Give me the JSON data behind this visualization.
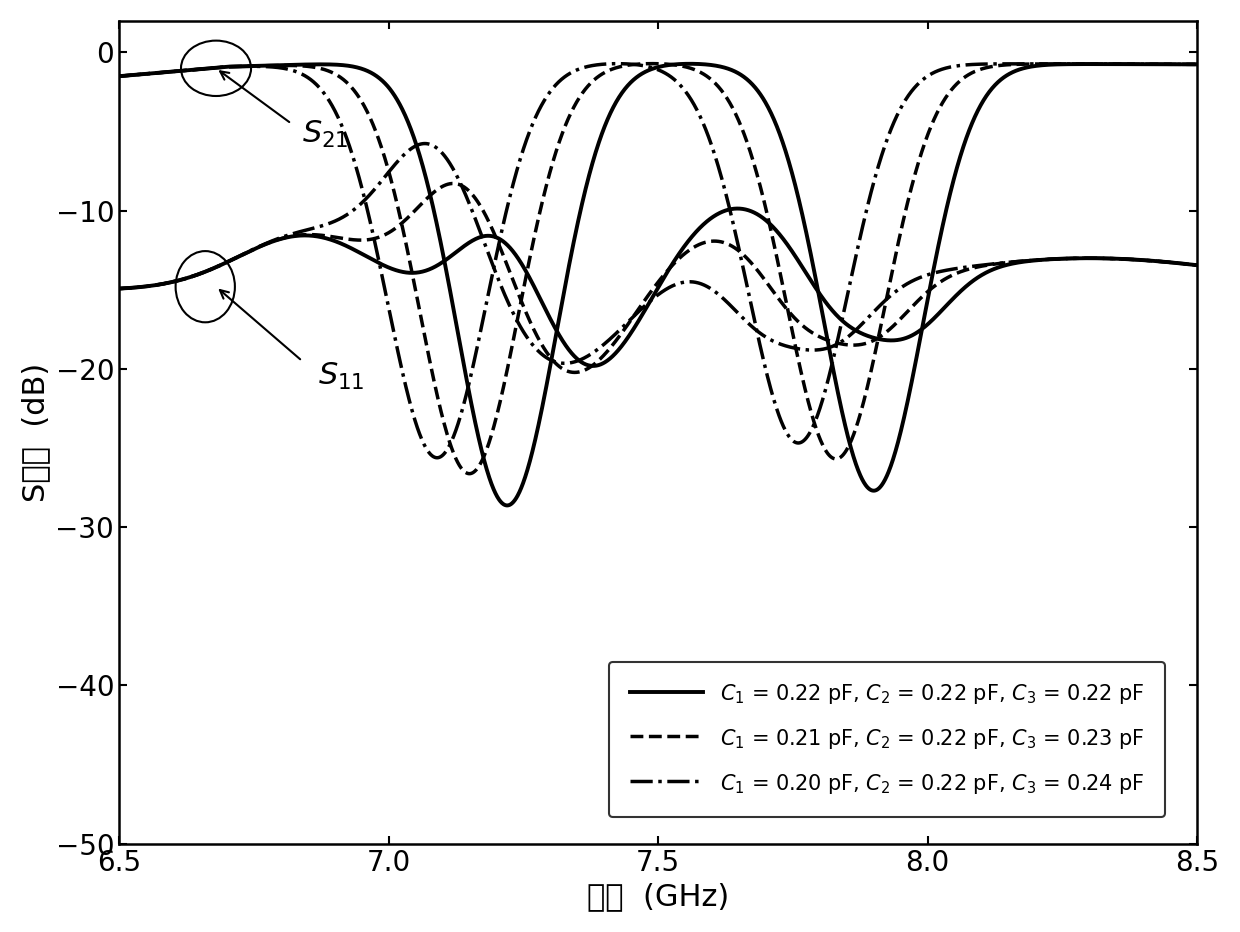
{
  "xlim": [
    6.5,
    8.5
  ],
  "ylim": [
    -50,
    2
  ],
  "xlabel": "频率  (GHz)",
  "ylabel": "S参数  (dB)",
  "xticks": [
    6.5,
    7.0,
    7.5,
    8.0,
    8.5
  ],
  "yticks": [
    0,
    -10,
    -20,
    -30,
    -40,
    -50
  ],
  "legend_labels": [
    "$C_1$ = 0.22 pF, $C_2$ = 0.22 pF, $C_3$ = 0.22 pF",
    "$C_1$ = 0.21 pF, $C_2$ = 0.22 pF, $C_3$ = 0.23 pF",
    "$C_1$ = 0.20 pF, $C_2$ = 0.22 pF, $C_3$ = 0.24 pF"
  ],
  "curves": [
    {
      "style": "-",
      "lw": 2.8,
      "s21_notch1_f": 7.22,
      "s21_notch1_d": 28,
      "s21_notch2_f": 7.9,
      "s21_notch2_d": 27,
      "s11_notch1_f": 7.22,
      "s11_notch2_f": 7.9
    },
    {
      "style": "--",
      "lw": 2.5,
      "s21_notch1_f": 7.15,
      "s21_notch1_d": 26,
      "s21_notch2_f": 7.83,
      "s21_notch2_d": 25,
      "s11_notch1_f": 7.15,
      "s11_notch2_f": 7.83
    },
    {
      "style": "-.",
      "lw": 2.5,
      "s21_notch1_f": 7.09,
      "s21_notch1_d": 25,
      "s21_notch2_f": 7.76,
      "s21_notch2_d": 24,
      "s11_notch1_f": 7.09,
      "s11_notch2_f": 7.76
    }
  ]
}
